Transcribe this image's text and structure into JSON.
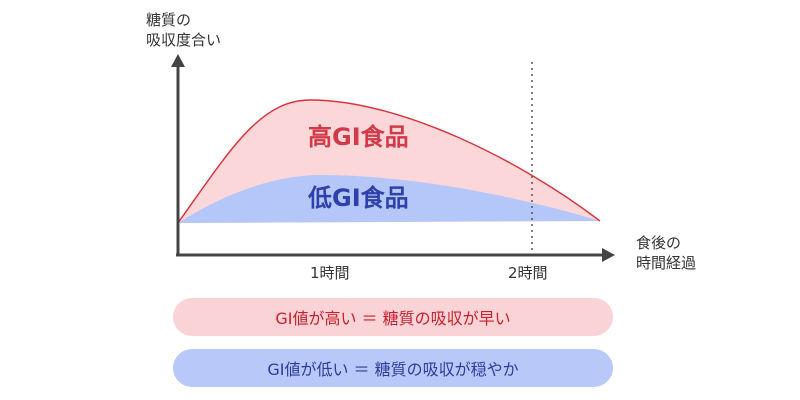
{
  "axes": {
    "y_label_line1": "糖質の",
    "y_label_line2": "吸収度合い",
    "x_label_line1": "食後の",
    "x_label_line2": "時間経過",
    "x_ticks": [
      "1時間",
      "2時間"
    ]
  },
  "curves": {
    "high": {
      "label": "高GI食品",
      "color": "#d9343f",
      "fill": "#fbd7d9"
    },
    "low": {
      "label": "低GI食品",
      "color": "#b5c6f8",
      "fill": "#b5c6f8"
    }
  },
  "legend": {
    "high_text": "GI値が高い ＝ 糖質の吸収が早い",
    "low_text": "GI値が低い ＝ 糖質の吸収が穏やか"
  },
  "colors": {
    "axis": "#444444",
    "high_text": "#d13a48",
    "low_text": "#2f41a8",
    "pill_high_bg": "#f9d3d6",
    "pill_low_bg": "#b8c8f8"
  }
}
